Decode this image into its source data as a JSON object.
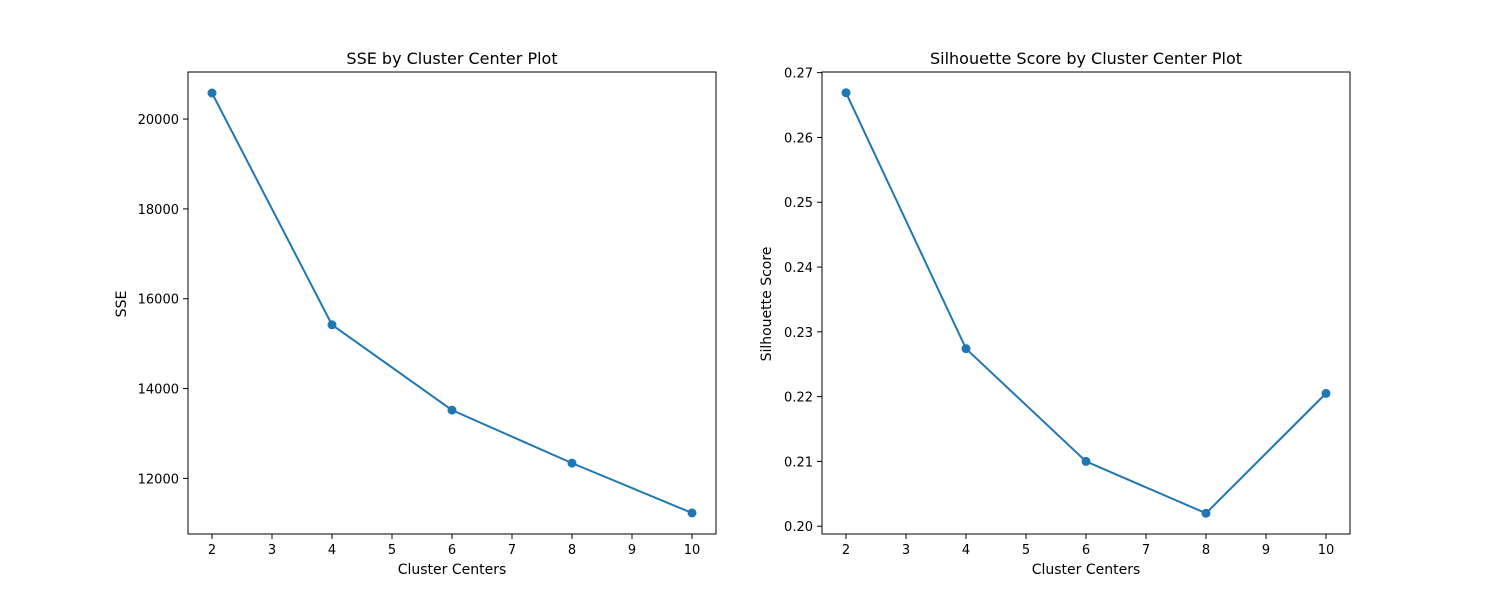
{
  "colors": {
    "series": "#1f77b4",
    "axes": "#000000",
    "background": "#ffffff"
  },
  "chart_data": [
    {
      "type": "line",
      "title": "SSE by Cluster Center Plot",
      "xlabel": "Cluster Centers",
      "ylabel": "SSE",
      "x": [
        2,
        4,
        6,
        8,
        10
      ],
      "series": [
        {
          "values": [
            20580,
            15420,
            13520,
            12340,
            11230
          ]
        }
      ],
      "markers": "circle",
      "xlim": [
        1.6,
        10.4
      ],
      "ylim": [
        10762,
        21048
      ],
      "xticks": [
        2,
        3,
        4,
        5,
        6,
        7,
        8,
        9,
        10
      ],
      "yticks": [
        12000,
        14000,
        16000,
        18000,
        20000
      ],
      "ytick_labels": [
        "12000",
        "14000",
        "16000",
        "18000",
        "20000"
      ],
      "grid": false
    },
    {
      "type": "line",
      "title": "Silhouette Score by Cluster Center Plot",
      "xlabel": "Cluster Centers",
      "ylabel": "Silhouette Score",
      "x": [
        2,
        4,
        6,
        8,
        10
      ],
      "series": [
        {
          "values": [
            0.2669,
            0.2274,
            0.21,
            0.202,
            0.2205
          ]
        }
      ],
      "markers": "circle",
      "xlim": [
        1.6,
        10.4
      ],
      "ylim": [
        0.1988,
        0.2701
      ],
      "xticks": [
        2,
        3,
        4,
        5,
        6,
        7,
        8,
        9,
        10
      ],
      "yticks": [
        0.2,
        0.21,
        0.22,
        0.23,
        0.24,
        0.25,
        0.26,
        0.27
      ],
      "ytick_labels": [
        "0.20",
        "0.21",
        "0.22",
        "0.23",
        "0.24",
        "0.25",
        "0.26",
        "0.27"
      ],
      "grid": false
    }
  ]
}
